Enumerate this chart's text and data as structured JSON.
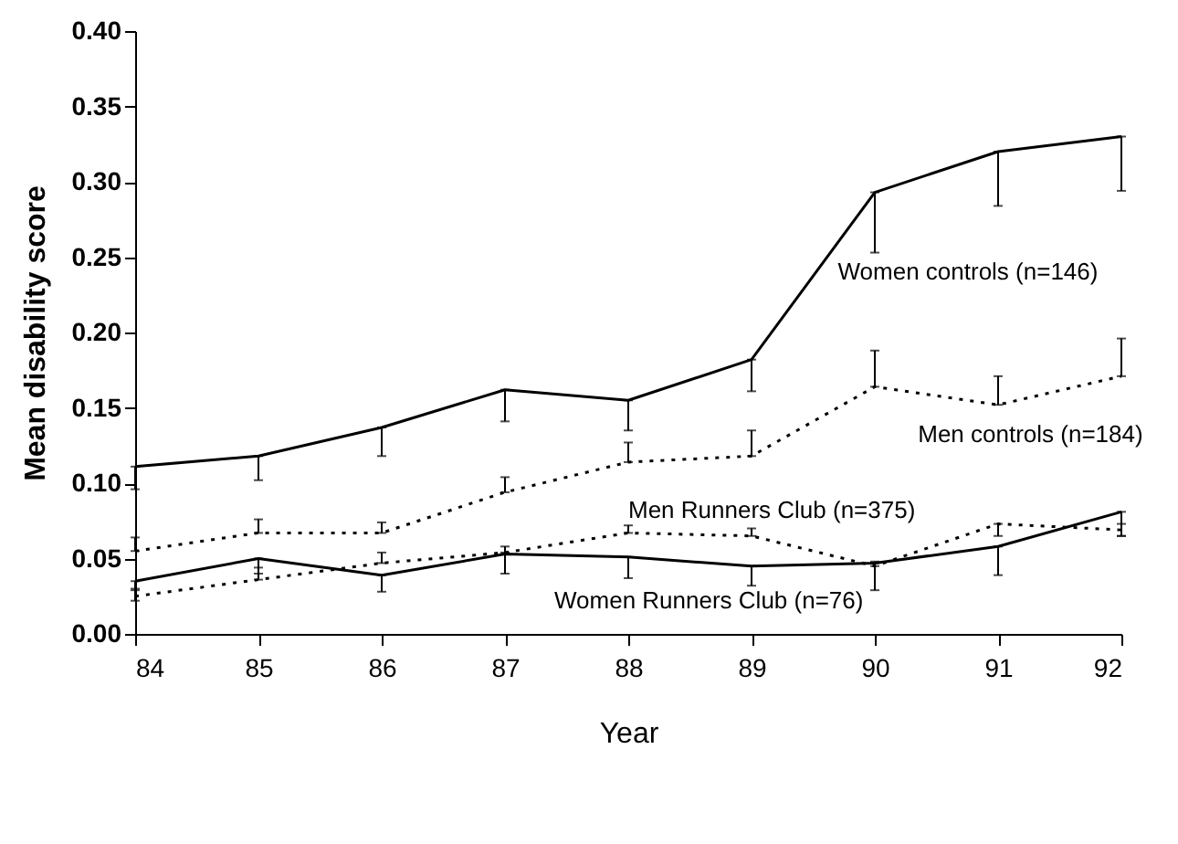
{
  "chart_data": {
    "type": "line",
    "xlabel": "Year",
    "ylabel": "Mean disability score",
    "x": [
      84,
      85,
      86,
      87,
      88,
      89,
      90,
      91,
      92
    ],
    "xlim": [
      84,
      92
    ],
    "xticks": [
      84,
      85,
      86,
      87,
      88,
      89,
      90,
      91,
      92
    ],
    "ylim": [
      0,
      0.4
    ],
    "yticks": [
      {
        "value": 0,
        "label": "0.00"
      },
      {
        "value": 0.05,
        "label": "0.05"
      },
      {
        "value": 0.1,
        "label": "0.10"
      },
      {
        "value": 0.15,
        "label": "0.15"
      },
      {
        "value": 0.2,
        "label": "0.20"
      },
      {
        "value": 0.25,
        "label": "0.25"
      },
      {
        "value": 0.3,
        "label": "0.30"
      },
      {
        "value": 0.35,
        "label": "0.35"
      },
      {
        "value": 0.4,
        "label": "0.40"
      }
    ],
    "grid": false,
    "marker": "none",
    "series": [
      {
        "name": "Women controls (n=146)",
        "color": "#000000",
        "line_style": "solid",
        "values": [
          0.111,
          0.118,
          0.137,
          0.162,
          0.155,
          0.182,
          0.293,
          0.32,
          0.33
        ],
        "errors": [
          [
            0.096,
            0.111
          ],
          [
            0.102,
            0.118
          ],
          [
            0.118,
            0.137
          ],
          [
            0.141,
            0.162
          ],
          [
            0.135,
            0.155
          ],
          [
            0.161,
            0.182
          ],
          [
            0.253,
            0.293
          ],
          [
            0.284,
            0.32
          ],
          [
            0.294,
            0.33
          ]
        ]
      },
      {
        "name": "Men controls (n=184)",
        "color": "#000000",
        "line_style": "dotted",
        "values": [
          0.055,
          0.067,
          0.067,
          0.094,
          0.114,
          0.118,
          0.164,
          0.152,
          0.171
        ],
        "errors": [
          [
            0.055,
            0.064
          ],
          [
            0.067,
            0.076
          ],
          [
            0.067,
            0.074
          ],
          [
            0.094,
            0.104
          ],
          [
            0.114,
            0.127
          ],
          [
            0.118,
            0.135
          ],
          [
            0.164,
            0.188
          ],
          [
            0.152,
            0.171
          ],
          [
            0.171,
            0.196
          ]
        ]
      },
      {
        "name": "Men Runners Club (n=375)",
        "color": "#000000",
        "line_style": "dotted",
        "values": [
          0.025,
          0.036,
          0.047,
          0.054,
          0.067,
          0.065,
          0.045,
          0.073,
          0.069
        ],
        "errors": [
          [
            0.022,
            0.03
          ],
          [
            0.036,
            0.044
          ],
          [
            0.047,
            0.054
          ],
          [
            0.054,
            0.058
          ],
          [
            0.067,
            0.072
          ],
          [
            0.065,
            0.07
          ],
          [
            0.045,
            0.048
          ],
          [
            0.065,
            0.073
          ],
          [
            0.065,
            0.073
          ]
        ]
      },
      {
        "name": "Women Runners Club (n=76)",
        "color": "#000000",
        "line_style": "solid",
        "values": [
          0.035,
          0.05,
          0.039,
          0.053,
          0.051,
          0.045,
          0.047,
          0.058,
          0.081
        ],
        "errors": [
          [
            0.029,
            0.035
          ],
          [
            0.04,
            0.05
          ],
          [
            0.028,
            0.039
          ],
          [
            0.04,
            0.053
          ],
          [
            0.037,
            0.051
          ],
          [
            0.032,
            0.045
          ],
          [
            0.029,
            0.047
          ],
          [
            0.039,
            0.058
          ],
          [
            0.065,
            0.081
          ]
        ]
      }
    ]
  }
}
